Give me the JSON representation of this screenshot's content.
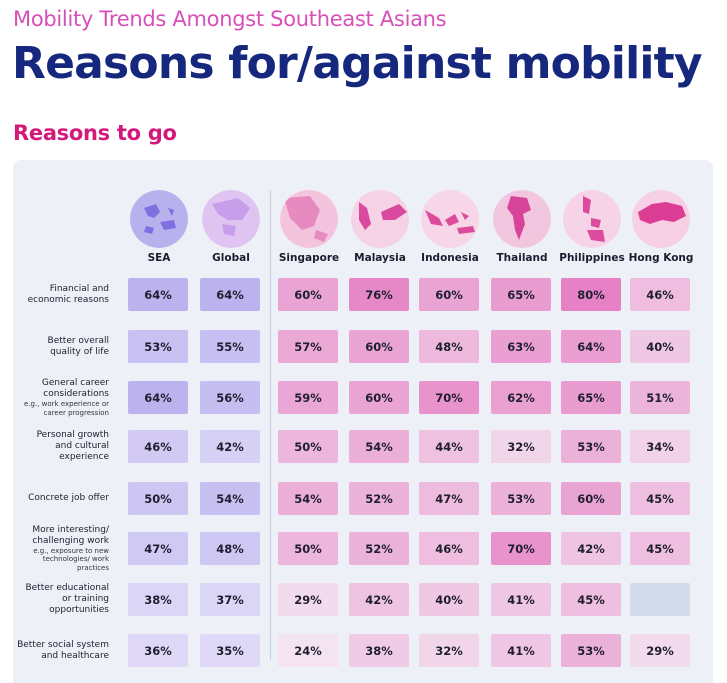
{
  "header": {
    "kicker": "Mobility Trends Amongst Southeast Asians",
    "title": "Reasons for/against mobility",
    "section": "Reasons to go"
  },
  "colors": {
    "kicker": "#d94fb8",
    "title": "#16287d",
    "section": "#d4197c",
    "panel": "#eef0f8",
    "empty_cell": "#d2dbe9"
  },
  "chart_data": {
    "type": "table",
    "columns": [
      {
        "name": "SEA",
        "icon": "sea-globe-icon",
        "palette": "purple"
      },
      {
        "name": "Global",
        "icon": "global-globe-icon",
        "palette": "purple"
      },
      {
        "name": "Singapore",
        "icon": "singapore-map-icon",
        "palette": "pink"
      },
      {
        "name": "Malaysia",
        "icon": "malaysia-map-icon",
        "palette": "pink"
      },
      {
        "name": "Indonesia",
        "icon": "indonesia-map-icon",
        "palette": "pink"
      },
      {
        "name": "Thailand",
        "icon": "thailand-map-icon",
        "palette": "pink"
      },
      {
        "name": "Philippines",
        "icon": "philippines-map-icon",
        "palette": "pink"
      },
      {
        "name": "Hong Kong",
        "icon": "hong-kong-map-icon",
        "palette": "pink"
      }
    ],
    "rows": [
      {
        "label": "Financial and economic reasons",
        "sub": "",
        "values": [
          64,
          64,
          60,
          76,
          60,
          65,
          80,
          46
        ]
      },
      {
        "label": "Better overall quality of life",
        "sub": "",
        "values": [
          53,
          55,
          57,
          60,
          48,
          63,
          64,
          40
        ]
      },
      {
        "label": "General career considerations",
        "sub": "e.g., work experience or career progression",
        "values": [
          64,
          56,
          59,
          60,
          70,
          62,
          65,
          51
        ]
      },
      {
        "label": "Personal growth and cultural experience",
        "sub": "",
        "values": [
          46,
          42,
          50,
          54,
          44,
          32,
          53,
          34
        ]
      },
      {
        "label": "Concrete job offer",
        "sub": "",
        "values": [
          50,
          54,
          54,
          52,
          47,
          53,
          60,
          45
        ]
      },
      {
        "label": "More interesting/ challenging work",
        "sub": "e.g., exposure to new technologies/ work practices",
        "values": [
          47,
          48,
          50,
          52,
          46,
          70,
          42,
          45
        ]
      },
      {
        "label": "Better educational or training opportunities",
        "sub": "",
        "values": [
          38,
          37,
          29,
          42,
          40,
          41,
          45,
          null
        ]
      },
      {
        "label": "Better social system and healthcare",
        "sub": "",
        "values": [
          36,
          35,
          24,
          38,
          32,
          41,
          53,
          29
        ]
      }
    ],
    "value_suffix": "%"
  }
}
